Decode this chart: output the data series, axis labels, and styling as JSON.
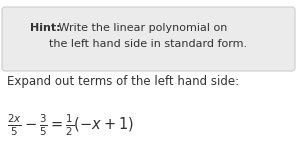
{
  "hint_bold": "Hint:",
  "hint_line1": " Write the linear polynomial on",
  "hint_line2": "the left hand side in standard form.",
  "expand_text": "Expand out terms of the left hand side:",
  "equation": "$\\frac{2x}{5} - \\frac{3}{5} = \\frac{1}{2}(-x+1)$",
  "box_bg": "#ebebeb",
  "box_edge": "#cccccc",
  "text_color": "#333333",
  "bg_color": "#ffffff",
  "hint_fontsize": 8.0,
  "expand_fontsize": 8.5,
  "eq_fontsize": 10.5
}
